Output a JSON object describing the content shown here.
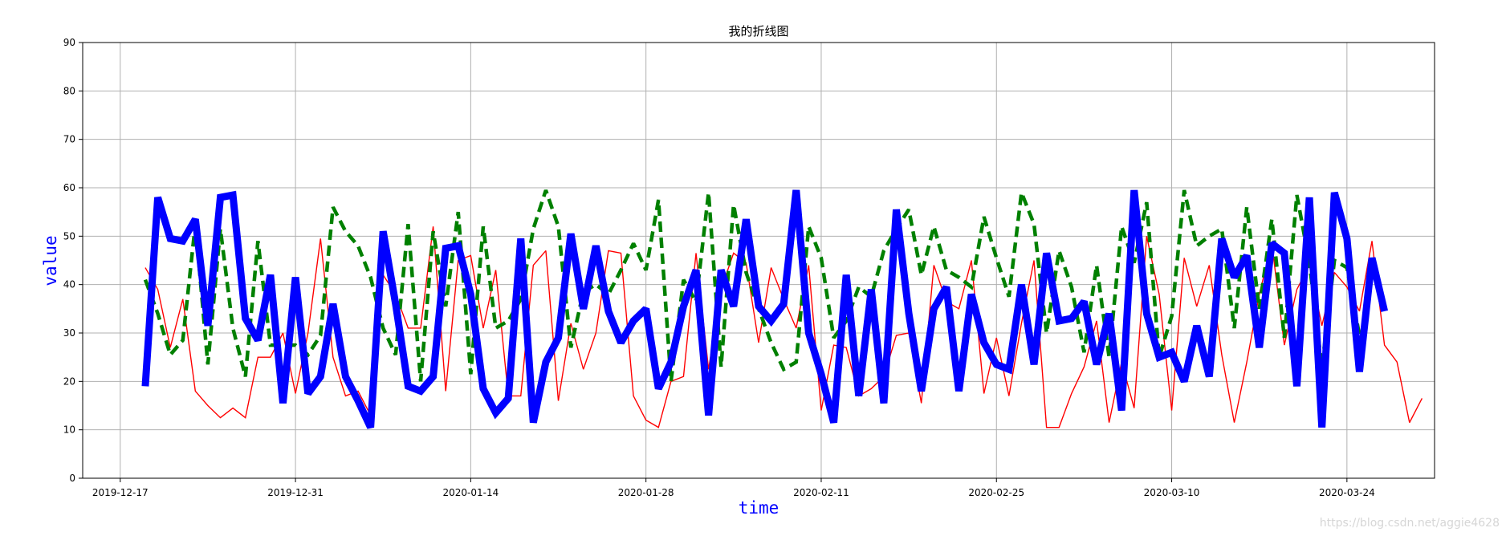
{
  "chart_data": {
    "type": "line",
    "title": "我的折线图",
    "xlabel": "time",
    "ylabel": "value",
    "label_color": "#0000ff",
    "x_tick_labels": [
      "2019-12-17",
      "2019-12-31",
      "2020-01-14",
      "2020-01-28",
      "2020-02-11",
      "2020-02-25",
      "2020-03-10",
      "2020-03-24"
    ],
    "y_ticks": [
      0,
      10,
      20,
      30,
      40,
      50,
      60,
      70,
      80,
      90
    ],
    "ylim": [
      0,
      90
    ],
    "xlim": [
      "2019-12-14",
      "2020-03-31"
    ],
    "grid": true,
    "start_date": "2019-12-19",
    "series": [
      {
        "color": "#ff0000",
        "style": "solid-thin",
        "values": [
          43.5,
          39,
          27,
          37,
          18,
          15,
          12.5,
          14.5,
          12.5,
          25,
          25,
          30,
          17.5,
          30,
          49.5,
          25,
          17,
          18,
          13,
          42,
          38,
          31,
          31,
          52,
          18,
          45,
          46,
          31,
          43,
          17,
          17,
          44,
          47,
          16,
          32,
          22.5,
          30,
          47,
          46.5,
          17,
          12,
          10.5,
          20,
          21,
          46.5,
          22.5,
          39,
          46.5,
          44.5,
          28,
          43.5,
          37,
          31,
          44,
          14,
          27.5,
          27,
          17,
          18.5,
          21,
          29.5,
          30,
          15.5,
          44,
          36.5,
          35,
          45,
          17.5,
          29,
          17,
          32,
          45,
          10.5,
          10.5,
          17.5,
          23,
          32.5,
          11.5,
          24,
          14.5,
          50,
          38,
          14,
          45.5,
          35.5,
          44,
          25.5,
          11.5,
          24,
          38,
          48.5,
          27.5,
          39,
          44,
          31.5,
          42.5,
          39.5,
          34.5,
          49,
          27.5,
          24,
          11.5,
          16.5
        ]
      },
      {
        "color": "#008000",
        "style": "dashed-thick",
        "values": [
          41,
          34,
          25.5,
          28.5,
          52.5,
          23.5,
          51.5,
          31,
          21,
          49,
          27.5,
          27.5,
          27.5,
          25.5,
          29.5,
          56,
          51,
          48,
          41.5,
          31,
          25.5,
          52.5,
          20,
          51,
          35.5,
          55,
          21.5,
          52,
          31,
          32.5,
          37,
          51.5,
          59.5,
          52,
          27,
          38.5,
          40,
          38,
          43,
          48.5,
          43,
          57.5,
          20,
          41,
          36.5,
          59,
          23,
          56.5,
          42.5,
          35,
          28,
          22.5,
          24,
          52,
          45.5,
          29,
          32.5,
          39.5,
          37.5,
          47,
          51.5,
          55.5,
          42,
          52,
          43,
          41.5,
          39.5,
          54,
          45.5,
          37.5,
          59,
          52.5,
          30,
          47,
          39.5,
          26,
          44,
          25,
          52,
          44.5,
          57,
          25,
          33.5,
          59.5,
          48,
          50,
          51.5,
          31,
          56,
          35,
          53.5,
          29,
          58.5,
          44.5,
          23,
          45,
          43.5,
          29.5
        ]
      },
      {
        "color": "#0000ff",
        "style": "solid-heavy",
        "values": [
          19,
          58,
          49.5,
          49,
          53.5,
          31.5,
          58,
          58.5,
          33,
          28.5,
          42,
          15.5,
          41.5,
          17.5,
          21,
          36,
          21,
          16,
          10.5,
          51,
          36,
          19,
          18,
          21,
          47.5,
          48,
          38,
          18.5,
          13.5,
          16.5,
          49.5,
          11.5,
          24,
          29,
          50.5,
          35,
          48,
          34.5,
          28,
          32.5,
          35,
          18.5,
          24,
          35.5,
          43,
          13,
          43,
          35.5,
          53.5,
          35.5,
          32.5,
          36,
          59.5,
          30,
          21.5,
          11.5,
          42,
          17,
          39,
          15.5,
          55.5,
          34,
          18,
          35,
          39.5,
          18,
          38,
          28,
          23.5,
          22.5,
          40,
          23.5,
          46.5,
          32.5,
          33,
          36.5,
          23.5,
          34,
          14,
          59.5,
          34,
          25,
          26,
          20,
          31.5,
          21,
          49.5,
          41.5,
          46,
          27,
          48.5,
          46.5,
          19,
          58,
          10.5,
          59,
          49.5,
          22,
          45.5,
          34.5
        ]
      }
    ]
  },
  "watermark": "https://blog.csdn.net/aggie4628"
}
